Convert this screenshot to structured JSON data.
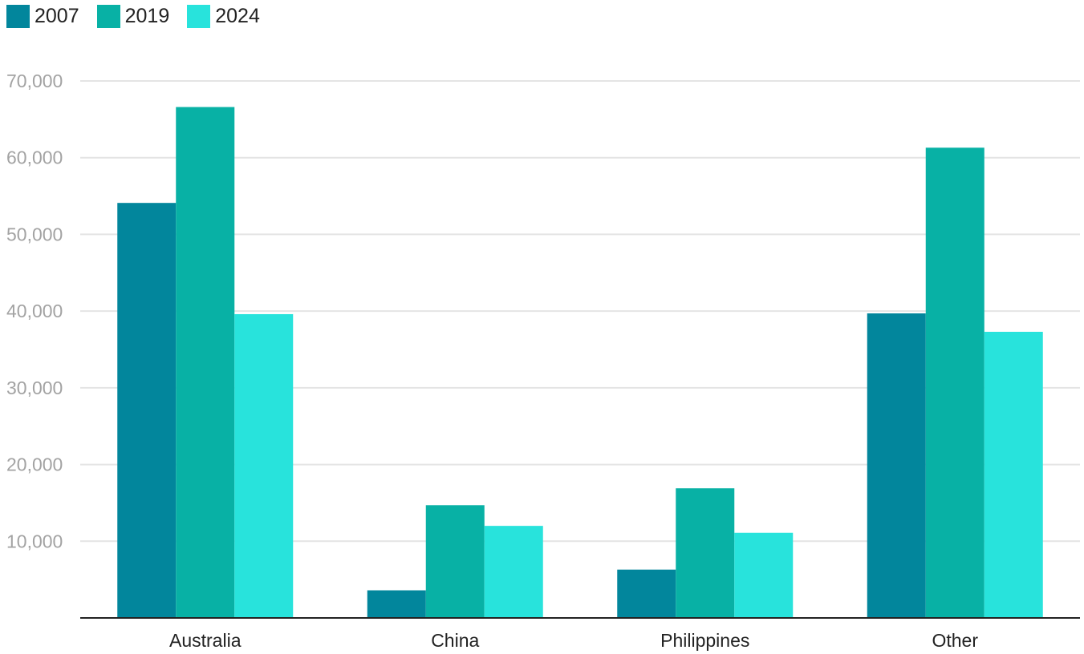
{
  "chart_data": {
    "type": "bar",
    "categories": [
      "Australia",
      "China",
      "Philippines",
      "Other"
    ],
    "series": [
      {
        "name": "2007",
        "values": [
          54100,
          3600,
          6300,
          39700
        ],
        "color": "#02869c"
      },
      {
        "name": "2019",
        "values": [
          66600,
          14700,
          16900,
          61300
        ],
        "color": "#08b1a5"
      },
      {
        "name": "2024",
        "values": [
          39600,
          12000,
          11100,
          37300
        ],
        "color": "#28e3dc"
      }
    ],
    "y_ticks": [
      "10,000",
      "20,000",
      "30,000",
      "40,000",
      "50,000",
      "60,000",
      "70,000"
    ],
    "y_tick_values": [
      10000,
      20000,
      30000,
      40000,
      50000,
      60000,
      70000
    ],
    "ylim": [
      0,
      70000
    ],
    "legend_position": "top-left",
    "grid": true,
    "axis_color": "#222222",
    "grid_color": "#e4e4e4"
  }
}
